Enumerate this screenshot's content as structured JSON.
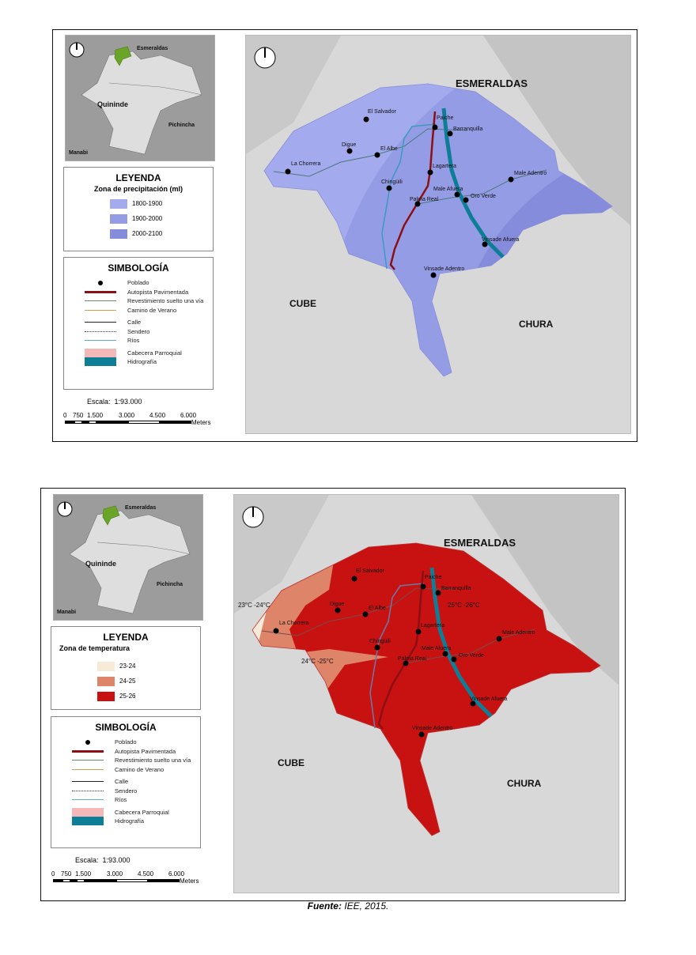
{
  "inset": {
    "esmeraldas": "Esmeraldas",
    "quininde": "Quininde",
    "pichincha": "Pichincha",
    "manabi": "Manabi"
  },
  "maps": [
    {
      "legend_title": "LEYENDA",
      "legend_subtitle": "Zona de precipitación (ml)",
      "classes": [
        {
          "label": "1800-1900",
          "color": "#a3aaee"
        },
        {
          "label": "1900-2000",
          "color": "#959ce6"
        },
        {
          "label": "2000-2100",
          "color": "#858cdc"
        }
      ]
    },
    {
      "legend_title": "LEYENDA",
      "legend_subtitle": "Zona de temperatura",
      "classes": [
        {
          "label": "23-24",
          "color": "#f8ead8"
        },
        {
          "label": "24-25",
          "color": "#de8468"
        },
        {
          "label": "25-26",
          "color": "#c81212"
        }
      ],
      "zone_labels": [
        "23°C -24°C",
        "24°C -25°C",
        "25°C -26°C"
      ]
    }
  ],
  "symbology": {
    "title": "SIMBOLOGÍA",
    "items": [
      "Poblado",
      "Autopista Pavimentada",
      "Revestimiento suelto una vía",
      "Camino de Verano",
      "Calle",
      "Sendero",
      "Ríos",
      "Cabecera Parroquial",
      "Hidrografía"
    ],
    "colors": {
      "highway": "#8b0f14",
      "gravel": "#6a8a6a",
      "summer": "#c9a04a",
      "river": "#5ab0c8",
      "parish": "#f5b8b8",
      "hydro": "#0e7d96"
    }
  },
  "scale": {
    "label": "Escala:",
    "value": "1:93.000",
    "ticks": [
      "0",
      "750",
      "1.500",
      "3.000",
      "4.500",
      "6.000"
    ],
    "unit": "Meters"
  },
  "neighbors": {
    "north": "ESMERALDAS",
    "west": "CUBE",
    "east": "CHURA"
  },
  "towns": [
    "El Salvador",
    "Paiche",
    "Barranquilla",
    "Digue",
    "El Albe",
    "La Chorrera",
    "Lagartera",
    "Chingüili",
    "Male Adentro",
    "Male Afuera",
    "Oro Verde",
    "Palma Real",
    "Vinsade Afuera",
    "Vinsade Adentro"
  ],
  "caption": {
    "label": "Fuente:",
    "text": " IEE, 2015."
  }
}
